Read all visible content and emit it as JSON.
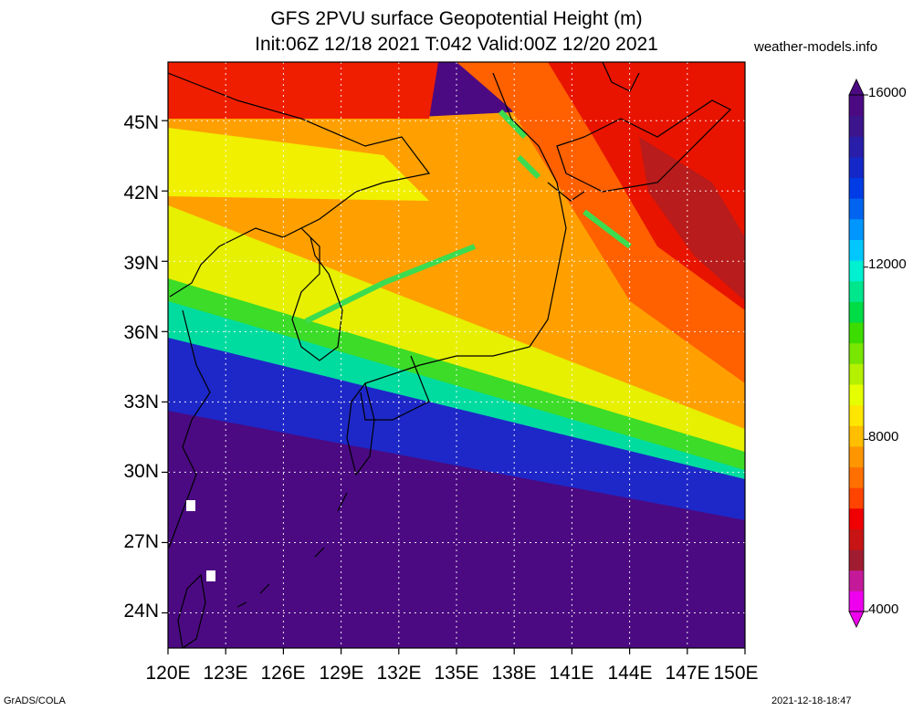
{
  "title": {
    "line1": "GFS 2PVU surface Geopotential Height (m)",
    "line2": "Init:06Z 12/18 2021 T:042 Valid:00Z 12/20 2021",
    "site": "weather-models.info"
  },
  "axes": {
    "lat_labels": [
      "45N",
      "42N",
      "39N",
      "36N",
      "33N",
      "30N",
      "27N",
      "24N"
    ],
    "lon_labels": [
      "120E",
      "123E",
      "126E",
      "129E",
      "132E",
      "135E",
      "138E",
      "141E",
      "144E",
      "147E",
      "150E"
    ],
    "lat_range": [
      22.5,
      47.5
    ],
    "lon_range": [
      120,
      150
    ]
  },
  "colorbar": {
    "labels": [
      "16000",
      "12000",
      "8000",
      "4000"
    ],
    "colors": [
      "#ee00ee",
      "#c41a9a",
      "#a01c30",
      "#c81414",
      "#f00000",
      "#ff4400",
      "#ff7000",
      "#ff9600",
      "#ffbe00",
      "#ffe600",
      "#e6ff00",
      "#b4f000",
      "#78e600",
      "#3cdc00",
      "#00dc46",
      "#00e68c",
      "#00f0d2",
      "#00c8ff",
      "#0096ff",
      "#0064f0",
      "#003ce6",
      "#1428c8",
      "#281eaa",
      "#3c148c",
      "#4b0a82"
    ]
  },
  "footer": {
    "left": "GrADS/COLA",
    "right": "2021-12-18-18:47"
  }
}
